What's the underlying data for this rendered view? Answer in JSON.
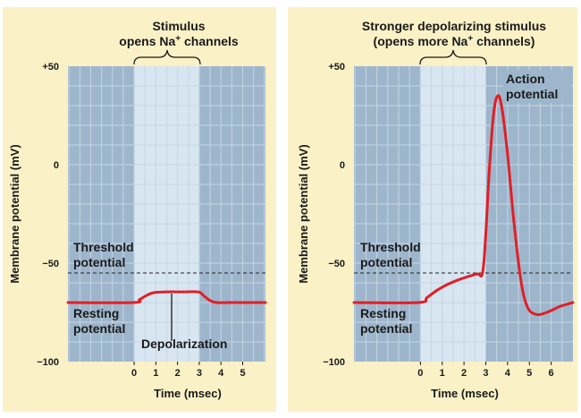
{
  "colors": {
    "panel_bg": "#fbf1c7",
    "plot_outer": "#9eb6cc",
    "plot_stim": "#d8e6f1",
    "grid": "#c5d5e3",
    "trace": "#e11f26",
    "threshold_line": "#222222"
  },
  "chart_data": [
    {
      "type": "line",
      "title_lines": [
        "Stimulus",
        "opens Na+ channels"
      ],
      "ylabel": "Membrane potential (mV)",
      "xlabel": "Time (msec)",
      "ylim": [
        -100,
        50
      ],
      "yticks": [
        "+50",
        "0",
        "−50",
        "−100"
      ],
      "ytick_values": [
        50,
        0,
        -50,
        -100
      ],
      "xticks": [
        "0",
        "1",
        "2",
        "3",
        "4",
        "5"
      ],
      "xtick_values": [
        0,
        1,
        2,
        3,
        4,
        5
      ],
      "xlim": [
        -3.05,
        6.05
      ],
      "stimulus_window": [
        0,
        3
      ],
      "threshold_mv": -55,
      "resting_mv": -70,
      "trace": {
        "x": [
          -3.05,
          -0.05,
          0.25,
          0.55,
          0.9,
          1.5,
          2.2,
          2.95,
          3.2,
          3.5,
          3.8,
          4.5,
          5.5,
          6.05
        ],
        "y": [
          -70,
          -70,
          -68.5,
          -66.5,
          -65,
          -64.6,
          -64.6,
          -64.6,
          -66.5,
          -69,
          -70,
          -70,
          -70,
          -70
        ]
      },
      "annotations": {
        "threshold": [
          "Threshold",
          "potential"
        ],
        "resting": [
          "Resting",
          "potential"
        ],
        "depolarization": "Depolarization"
      }
    },
    {
      "type": "line",
      "title_lines": [
        "Stronger depolarizing stimulus",
        "(opens more Na+ channels)"
      ],
      "ylabel": "Membrane potential (mV)",
      "xlabel": "Time (msec)",
      "ylim": [
        -100,
        50
      ],
      "yticks": [
        "+50",
        "0",
        "−50",
        "−100"
      ],
      "ytick_values": [
        50,
        0,
        -50,
        -100
      ],
      "xticks": [
        "0",
        "1",
        "2",
        "3",
        "4",
        "5",
        "6"
      ],
      "xtick_values": [
        0,
        1,
        2,
        3,
        4,
        5,
        6
      ],
      "xlim": [
        -3.05,
        7.0
      ],
      "stimulus_window": [
        0,
        3
      ],
      "threshold_mv": -55,
      "resting_mv": -70,
      "trace": {
        "x": [
          -3.05,
          -0.1,
          0.3,
          0.8,
          1.4,
          2.0,
          2.6,
          2.85,
          3.0,
          3.15,
          3.35,
          3.55,
          3.75,
          4.0,
          4.3,
          4.6,
          4.9,
          5.3,
          5.8,
          6.4,
          7.0
        ],
        "y": [
          -70,
          -70,
          -67.5,
          -63.5,
          -60,
          -57.5,
          -55.5,
          -55,
          -35,
          -5,
          25,
          35,
          28,
          5,
          -30,
          -58,
          -72,
          -76,
          -75,
          -72,
          -70
        ]
      },
      "annotations": {
        "threshold": [
          "Threshold",
          "potential"
        ],
        "resting": [
          "Resting",
          "potential"
        ],
        "action": [
          "Action",
          "potential"
        ]
      }
    }
  ]
}
